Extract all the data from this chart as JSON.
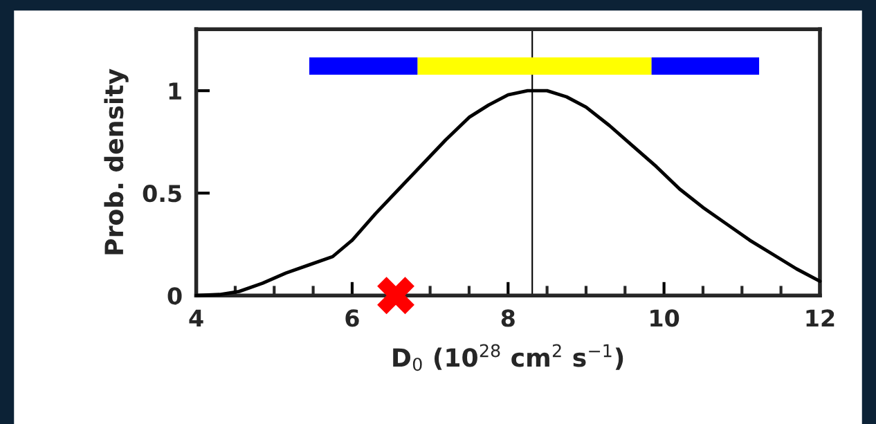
{
  "chart_data": {
    "type": "line",
    "xlabel": "D$_{0}$ (10$^{28}$ cm$^{2}$ s$^{−1}$)",
    "ylabel": "Prob. density",
    "xlim": [
      4,
      12
    ],
    "xticks": [
      4,
      6,
      8,
      10,
      12
    ],
    "ylim": [
      0,
      1.3
    ],
    "yticks": [
      0,
      0.5,
      1
    ],
    "grid": false,
    "legend": false,
    "series": [
      {
        "type": "line",
        "color": "#0000ff",
        "x": [
          5.45,
          6.84
        ],
        "values": [
          1.12,
          1.12
        ]
      },
      {
        "type": "line",
        "color": "#ffff00",
        "x": [
          6.84,
          9.84
        ],
        "values": [
          1.12,
          1.12
        ]
      },
      {
        "type": "line",
        "color": "#0000ff",
        "x": [
          9.84,
          11.22
        ],
        "values": [
          1.12,
          1.12
        ]
      },
      {
        "type": "line",
        "color": "#000000",
        "x": [
          4,
          4.3,
          4.55,
          4.85,
          5.15,
          5.45,
          5.75,
          6.0,
          6.3,
          6.6,
          6.9,
          7.2,
          7.5,
          7.75,
          8.0,
          8.25,
          8.5,
          8.75,
          9.0,
          9.3,
          9.6,
          9.9,
          10.2,
          10.5,
          10.8,
          11.1,
          11.4,
          11.7,
          12.0
        ],
        "values": [
          0,
          0.005,
          0.02,
          0.06,
          0.11,
          0.15,
          0.19,
          0.27,
          0.4,
          0.52,
          0.64,
          0.76,
          0.87,
          0.93,
          0.98,
          1.0,
          1.0,
          0.97,
          0.92,
          0.83,
          0.73,
          0.63,
          0.52,
          0.43,
          0.35,
          0.27,
          0.2,
          0.13,
          0.07
        ]
      },
      {
        "type": "scatter",
        "color": "#ff0000",
        "marker": "cross",
        "x": [
          6.56
        ],
        "values": [
          0
        ]
      }
    ],
    "ref_lines": [
      {
        "axis": "x",
        "value": 8.31,
        "color": "#000000"
      }
    ]
  }
}
